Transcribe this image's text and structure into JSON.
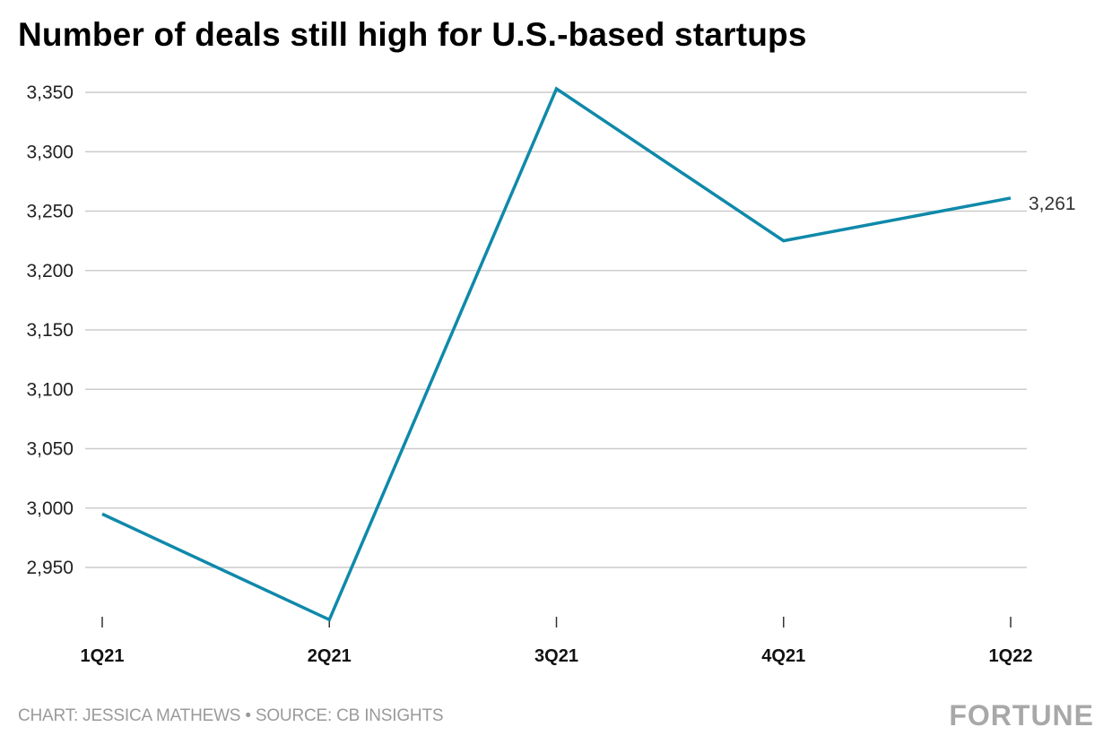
{
  "chart_data": {
    "type": "line",
    "title": "Number of deals still high for U.S.-based startups",
    "xlabel": "",
    "ylabel": "",
    "categories": [
      "1Q21",
      "2Q21",
      "3Q21",
      "4Q21",
      "1Q22"
    ],
    "series": [
      {
        "name": "Number of deals",
        "values": [
          2995,
          2906,
          3353,
          3225,
          3261
        ],
        "color": "#0f89aa"
      }
    ],
    "yticks": [
      2950,
      3000,
      3050,
      3100,
      3150,
      3200,
      3250,
      3300,
      3350
    ],
    "ytick_labels": [
      "2,950",
      "3,000",
      "3,050",
      "3,100",
      "3,150",
      "3,200",
      "3,250",
      "3,300",
      "3,350"
    ],
    "ylim": [
      2906,
      3353
    ],
    "grid": true,
    "legend": "none",
    "end_label": "3,261"
  },
  "footer": {
    "credit": "CHART: JESSICA MATHEWS • SOURCE: CB INSIGHTS",
    "brand": "FORTUNE"
  },
  "colors": {
    "line": "#0f89aa",
    "grid": "#cccccc",
    "footer": "#9a9a9a"
  }
}
